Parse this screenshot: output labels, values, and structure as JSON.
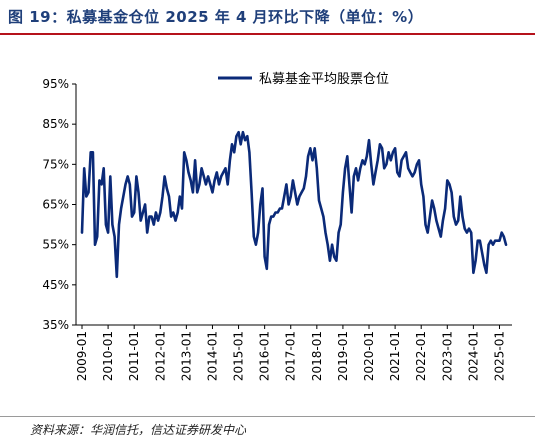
{
  "header": {
    "title": "图 19：私募基金仓位 2025 年 4 月环比下降（单位：%）"
  },
  "footer": {
    "source": "资料来源：华润信托，信达证券研发中心"
  },
  "colors": {
    "line": "#0b2a78",
    "axis": "#000000",
    "accent": "#b5121b"
  },
  "chart_data": {
    "type": "line",
    "title": "",
    "xlabel": "",
    "ylabel": "",
    "legend": {
      "label": "私募基金平均股票仓位",
      "position": "top-center"
    },
    "grid": false,
    "ylim": [
      35,
      95
    ],
    "yticks": [
      35,
      45,
      55,
      65,
      75,
      85,
      95
    ],
    "ytick_labels": [
      "35%",
      "45%",
      "55%",
      "65%",
      "75%",
      "85%",
      "95%"
    ],
    "xticks": [
      "2009-01",
      "2010-01",
      "2011-01",
      "2012-01",
      "2013-01",
      "2014-01",
      "2015-01",
      "2016-01",
      "2017-01",
      "2018-01",
      "2019-01",
      "2020-01",
      "2021-01",
      "2022-01",
      "2023-01",
      "2024-01",
      "2025-01"
    ],
    "xrange": [
      "2009-01",
      "2025-04"
    ],
    "series": [
      {
        "name": "私募基金平均股票仓位",
        "points": [
          [
            "2009-01",
            58
          ],
          [
            "2009-02",
            74
          ],
          [
            "2009-03",
            67
          ],
          [
            "2009-04",
            68
          ],
          [
            "2009-05",
            78
          ],
          [
            "2009-06",
            78
          ],
          [
            "2009-07",
            55
          ],
          [
            "2009-08",
            57
          ],
          [
            "2009-09",
            71
          ],
          [
            "2009-10",
            70
          ],
          [
            "2009-11",
            74
          ],
          [
            "2009-12",
            60
          ],
          [
            "2010-01",
            58
          ],
          [
            "2010-02",
            72
          ],
          [
            "2010-03",
            60
          ],
          [
            "2010-04",
            57
          ],
          [
            "2010-05",
            47
          ],
          [
            "2010-06",
            60
          ],
          [
            "2010-07",
            64
          ],
          [
            "2010-08",
            67
          ],
          [
            "2010-09",
            70
          ],
          [
            "2010-10",
            72
          ],
          [
            "2010-11",
            70
          ],
          [
            "2010-12",
            62
          ],
          [
            "2011-01",
            63
          ],
          [
            "2011-02",
            72
          ],
          [
            "2011-03",
            68
          ],
          [
            "2011-04",
            61
          ],
          [
            "2011-05",
            63
          ],
          [
            "2011-06",
            65
          ],
          [
            "2011-07",
            58
          ],
          [
            "2011-08",
            62
          ],
          [
            "2011-09",
            62
          ],
          [
            "2011-10",
            60
          ],
          [
            "2011-11",
            63
          ],
          [
            "2011-12",
            61
          ],
          [
            "2012-01",
            63
          ],
          [
            "2012-02",
            67
          ],
          [
            "2012-03",
            72
          ],
          [
            "2012-04",
            69
          ],
          [
            "2012-05",
            67
          ],
          [
            "2012-06",
            62
          ],
          [
            "2012-07",
            63
          ],
          [
            "2012-08",
            61
          ],
          [
            "2012-09",
            63
          ],
          [
            "2012-10",
            67
          ],
          [
            "2012-11",
            64
          ],
          [
            "2012-12",
            78
          ],
          [
            "2013-01",
            76
          ],
          [
            "2013-02",
            73
          ],
          [
            "2013-03",
            71
          ],
          [
            "2013-04",
            68
          ],
          [
            "2013-05",
            76
          ],
          [
            "2013-06",
            68
          ],
          [
            "2013-07",
            70
          ],
          [
            "2013-08",
            74
          ],
          [
            "2013-09",
            72
          ],
          [
            "2013-10",
            70
          ],
          [
            "2013-11",
            72
          ],
          [
            "2013-12",
            70
          ],
          [
            "2014-01",
            68
          ],
          [
            "2014-02",
            71
          ],
          [
            "2014-03",
            73
          ],
          [
            "2014-04",
            70
          ],
          [
            "2014-05",
            72
          ],
          [
            "2014-06",
            73
          ],
          [
            "2014-07",
            74
          ],
          [
            "2014-08",
            70
          ],
          [
            "2014-09",
            76
          ],
          [
            "2014-10",
            80
          ],
          [
            "2014-11",
            78
          ],
          [
            "2014-12",
            82
          ],
          [
            "2015-01",
            83
          ],
          [
            "2015-02",
            80
          ],
          [
            "2015-03",
            83
          ],
          [
            "2015-04",
            81
          ],
          [
            "2015-05",
            82
          ],
          [
            "2015-06",
            78
          ],
          [
            "2015-07",
            68
          ],
          [
            "2015-08",
            57
          ],
          [
            "2015-09",
            55
          ],
          [
            "2015-10",
            58
          ],
          [
            "2015-11",
            65
          ],
          [
            "2015-12",
            69
          ],
          [
            "2016-01",
            52
          ],
          [
            "2016-02",
            49
          ],
          [
            "2016-03",
            60
          ],
          [
            "2016-04",
            62
          ],
          [
            "2016-05",
            62
          ],
          [
            "2016-06",
            63
          ],
          [
            "2016-07",
            63
          ],
          [
            "2016-08",
            64
          ],
          [
            "2016-09",
            64
          ],
          [
            "2016-10",
            67
          ],
          [
            "2016-11",
            70
          ],
          [
            "2016-12",
            65
          ],
          [
            "2017-01",
            67
          ],
          [
            "2017-02",
            71
          ],
          [
            "2017-03",
            68
          ],
          [
            "2017-04",
            65
          ],
          [
            "2017-05",
            67
          ],
          [
            "2017-06",
            68
          ],
          [
            "2017-07",
            69
          ],
          [
            "2017-08",
            72
          ],
          [
            "2017-09",
            77
          ],
          [
            "2017-10",
            79
          ],
          [
            "2017-11",
            76
          ],
          [
            "2017-12",
            79
          ],
          [
            "2018-01",
            74
          ],
          [
            "2018-02",
            66
          ],
          [
            "2018-03",
            64
          ],
          [
            "2018-04",
            62
          ],
          [
            "2018-05",
            58
          ],
          [
            "2018-06",
            55
          ],
          [
            "2018-07",
            51
          ],
          [
            "2018-08",
            55
          ],
          [
            "2018-09",
            52
          ],
          [
            "2018-10",
            51
          ],
          [
            "2018-11",
            58
          ],
          [
            "2018-12",
            60
          ],
          [
            "2019-01",
            68
          ],
          [
            "2019-02",
            74
          ],
          [
            "2019-03",
            77
          ],
          [
            "2019-04",
            70
          ],
          [
            "2019-05",
            63
          ],
          [
            "2019-06",
            72
          ],
          [
            "2019-07",
            74
          ],
          [
            "2019-08",
            71
          ],
          [
            "2019-09",
            74
          ],
          [
            "2019-10",
            76
          ],
          [
            "2019-11",
            75
          ],
          [
            "2019-12",
            77
          ],
          [
            "2020-01",
            81
          ],
          [
            "2020-02",
            75
          ],
          [
            "2020-03",
            70
          ],
          [
            "2020-04",
            73
          ],
          [
            "2020-05",
            76
          ],
          [
            "2020-06",
            80
          ],
          [
            "2020-07",
            79
          ],
          [
            "2020-08",
            74
          ],
          [
            "2020-09",
            75
          ],
          [
            "2020-10",
            78
          ],
          [
            "2020-11",
            76
          ],
          [
            "2020-12",
            78
          ],
          [
            "2021-01",
            79
          ],
          [
            "2021-02",
            73
          ],
          [
            "2021-03",
            72
          ],
          [
            "2021-04",
            76
          ],
          [
            "2021-05",
            77
          ],
          [
            "2021-06",
            78
          ],
          [
            "2021-07",
            74
          ],
          [
            "2021-08",
            73
          ],
          [
            "2021-09",
            72
          ],
          [
            "2021-10",
            73
          ],
          [
            "2021-11",
            75
          ],
          [
            "2021-12",
            76
          ],
          [
            "2022-01",
            70
          ],
          [
            "2022-02",
            67
          ],
          [
            "2022-03",
            60
          ],
          [
            "2022-04",
            58
          ],
          [
            "2022-05",
            62
          ],
          [
            "2022-06",
            66
          ],
          [
            "2022-07",
            64
          ],
          [
            "2022-08",
            61
          ],
          [
            "2022-09",
            59
          ],
          [
            "2022-10",
            57
          ],
          [
            "2022-11",
            61
          ],
          [
            "2022-12",
            64
          ],
          [
            "2023-01",
            71
          ],
          [
            "2023-02",
            70
          ],
          [
            "2023-03",
            68
          ],
          [
            "2023-04",
            62
          ],
          [
            "2023-05",
            60
          ],
          [
            "2023-06",
            61
          ],
          [
            "2023-07",
            67
          ],
          [
            "2023-08",
            62
          ],
          [
            "2023-09",
            59
          ],
          [
            "2023-10",
            58
          ],
          [
            "2023-11",
            59
          ],
          [
            "2023-12",
            58
          ],
          [
            "2024-01",
            48
          ],
          [
            "2024-02",
            51
          ],
          [
            "2024-03",
            56
          ],
          [
            "2024-04",
            56
          ],
          [
            "2024-05",
            53
          ],
          [
            "2024-06",
            50
          ],
          [
            "2024-07",
            48
          ],
          [
            "2024-08",
            55
          ],
          [
            "2024-09",
            56
          ],
          [
            "2024-10",
            55
          ],
          [
            "2024-11",
            56
          ],
          [
            "2024-12",
            56
          ],
          [
            "2025-01",
            56
          ],
          [
            "2025-02",
            58
          ],
          [
            "2025-03",
            57
          ],
          [
            "2025-04",
            55
          ]
        ]
      }
    ]
  }
}
